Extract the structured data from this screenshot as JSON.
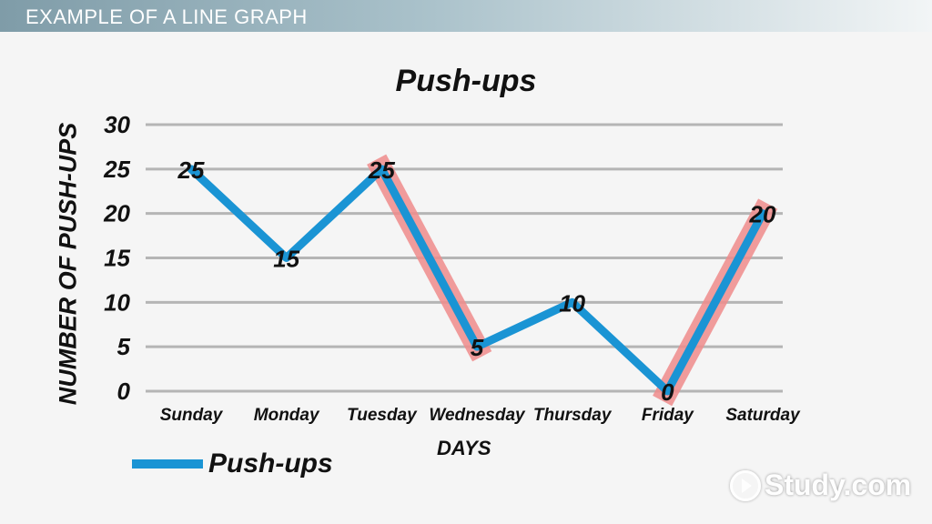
{
  "banner": {
    "title": "EXAMPLE OF A LINE GRAPH"
  },
  "watermark": {
    "text": "Study.com"
  },
  "colors": {
    "line": "#1a94d4",
    "highlight": "#f08c8c",
    "grid": "#b5b5b5",
    "text": "#111111"
  },
  "chart_data": {
    "type": "line",
    "title": "Push-ups",
    "xlabel": "DAYS",
    "ylabel": "NUMBER OF PUSH-UPS",
    "categories": [
      "Sunday",
      "Monday",
      "Tuesday",
      "Wednesday",
      "Thursday",
      "Friday",
      "Saturday"
    ],
    "series": [
      {
        "name": "Push-ups",
        "values": [
          25,
          15,
          25,
          5,
          10,
          0,
          20
        ]
      }
    ],
    "data_labels": [
      "25",
      "15",
      "25",
      "5",
      "10",
      "0",
      "20"
    ],
    "yticks": [
      0,
      5,
      10,
      15,
      20,
      25,
      30
    ],
    "ylim": [
      0,
      30
    ],
    "grid": true,
    "legend": "bottom-left",
    "highlighted_segments": [
      {
        "from": "Tuesday",
        "to": "Wednesday"
      },
      {
        "from": "Friday",
        "to": "Saturday"
      }
    ]
  }
}
